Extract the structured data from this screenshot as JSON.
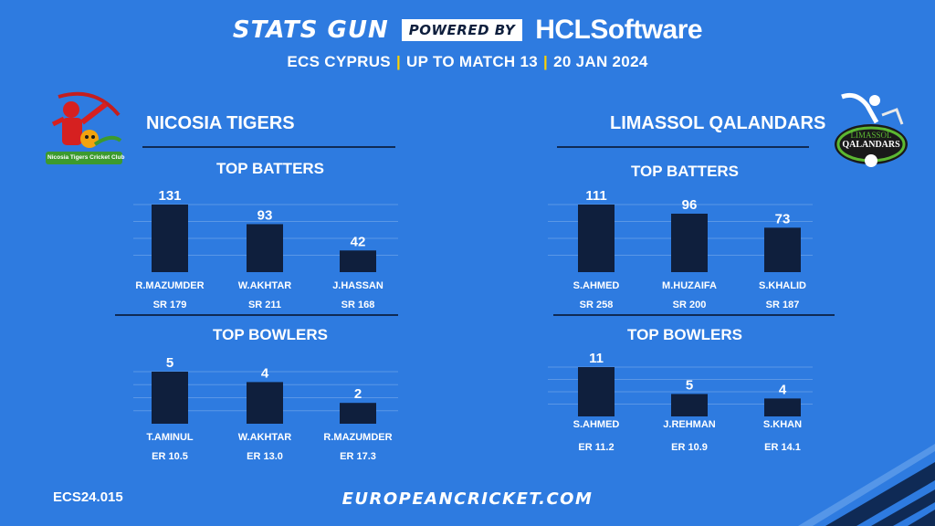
{
  "header": {
    "stats_gun": "STATS GUN",
    "powered_by": "POWERED BY",
    "sponsor": "HCLSoftware",
    "league": "ECS CYPRUS",
    "match_info": "UP TO MATCH 13",
    "date": "20 JAN 2024"
  },
  "teams": {
    "left": {
      "name": "NICOSIA TIGERS",
      "logo_text": "Nicosia Tigers Cricket Club",
      "batters_title": "TOP BATTERS",
      "bowlers_title": "TOP BOWLERS"
    },
    "right": {
      "name": "LIMASSOL QALANDARS",
      "logo_text_top": "LIMASSOL",
      "logo_text_bottom": "QALANDARS",
      "batters_title": "TOP BATTERS",
      "bowlers_title": "TOP BOWLERS"
    }
  },
  "chart_data": [
    {
      "type": "bar",
      "title": "TOP BATTERS",
      "team": "NICOSIA TIGERS",
      "categories": [
        "R.MAZUMDER",
        "W.AKHTAR",
        "J.HASSAN"
      ],
      "values": [
        131,
        93,
        42
      ],
      "sublabels": [
        "SR 179",
        "SR 211",
        "SR 168"
      ],
      "ylim": [
        0,
        131
      ],
      "grid": true
    },
    {
      "type": "bar",
      "title": "TOP BOWLERS",
      "team": "NICOSIA TIGERS",
      "categories": [
        "T.AMINUL",
        "W.AKHTAR",
        "R.MAZUMDER"
      ],
      "values": [
        5,
        4,
        2
      ],
      "sublabels": [
        "ER 10.5",
        "ER 13.0",
        "ER 17.3"
      ],
      "ylim": [
        0,
        5
      ],
      "grid": true
    },
    {
      "type": "bar",
      "title": "TOP BATTERS",
      "team": "LIMASSOL QALANDARS",
      "categories": [
        "S.AHMED",
        "M.HUZAIFA",
        "S.KHALID"
      ],
      "values": [
        111,
        96,
        73
      ],
      "sublabels": [
        "SR 258",
        "SR 200",
        "SR 187"
      ],
      "ylim": [
        0,
        111
      ],
      "grid": true
    },
    {
      "type": "bar",
      "title": "TOP BOWLERS",
      "team": "LIMASSOL QALANDARS",
      "categories": [
        "S.AHMED",
        "J.REHMAN",
        "S.KHAN"
      ],
      "values": [
        11,
        5,
        4
      ],
      "sublabels": [
        "ER 11.2",
        "ER 10.9",
        "ER 14.1"
      ],
      "ylim": [
        0,
        11
      ],
      "grid": true
    }
  ],
  "footer": {
    "code": "ECS24.015",
    "url": "EUROPEANCRICKET.COM"
  },
  "colors": {
    "background": "#2e7be0",
    "bar": "#0f1f3d",
    "divider": "#0f2a55",
    "separator": "#ffd200",
    "text": "#ffffff"
  }
}
